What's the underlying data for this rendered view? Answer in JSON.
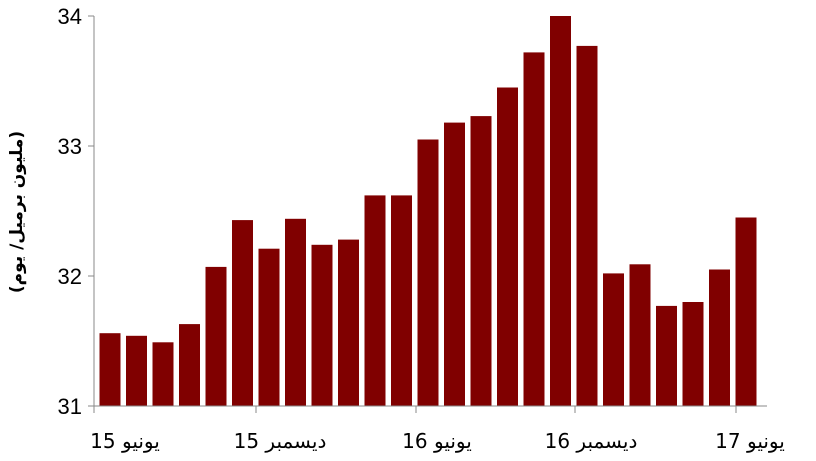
{
  "chart_data": {
    "type": "bar",
    "title": "",
    "xlabel": "",
    "ylabel": "(مليون برميل/ يوم)",
    "ylim": [
      31,
      34
    ],
    "yticks": [
      "31",
      "32",
      "33",
      "34"
    ],
    "xtick_labels": [
      "يونيو 15",
      "ديسمبر 15",
      "يونيو 16",
      "ديسمبر 16",
      "يونيو 17"
    ],
    "values": [
      31.56,
      31.54,
      31.49,
      31.63,
      32.07,
      32.43,
      32.21,
      32.44,
      32.24,
      32.28,
      32.62,
      32.62,
      33.05,
      33.18,
      33.23,
      33.45,
      33.72,
      34.0,
      33.77,
      32.02,
      32.09,
      31.77,
      31.8,
      32.05,
      32.45
    ],
    "bar_color": "#800000",
    "grid": false,
    "legend": "none"
  }
}
